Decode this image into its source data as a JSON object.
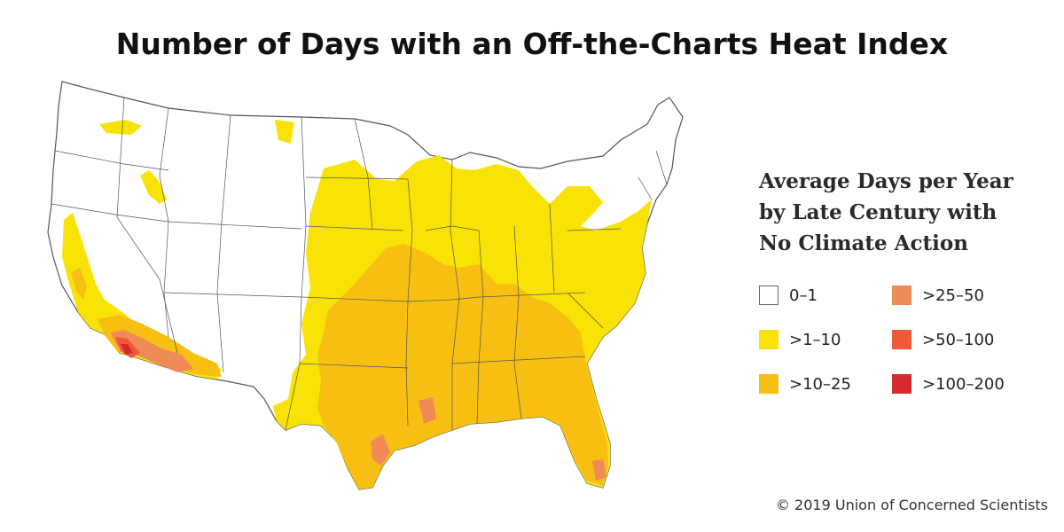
{
  "title": "Number of Days with an Off-the-Charts Heat Index",
  "legend": {
    "title_lines": [
      "Average Days per Year",
      "by Late Century with",
      "No Climate Action"
    ],
    "items": [
      {
        "label": "0–1",
        "color": "#ffffff"
      },
      {
        "label": ">1–10",
        "color": "#f9e206"
      },
      {
        "label": ">10–25",
        "color": "#f7bf11"
      },
      {
        "label": ">25–50",
        "color": "#f08a57"
      },
      {
        "label": ">50–100",
        "color": "#ee5a38"
      },
      {
        "label": ">100–200",
        "color": "#d42a2e"
      }
    ]
  },
  "credit": "© 2019 Union of Concerned Scientists"
}
